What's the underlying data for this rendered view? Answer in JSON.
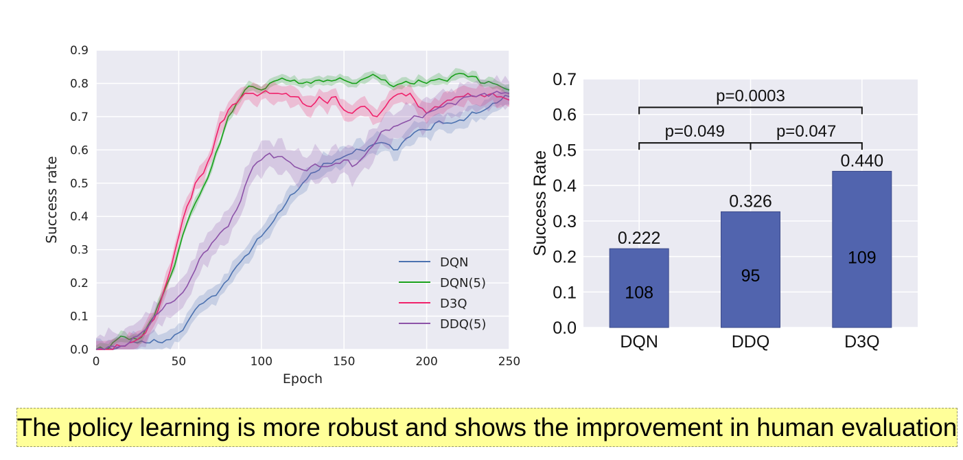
{
  "colors": {
    "plot_bg": "#eaeaf2",
    "grid": "#ffffff",
    "bar": "#5164ae",
    "caption_bg": "#ffff99"
  },
  "caption": "The policy learning is more robust and shows the improvement in human evaluation",
  "chart_data": [
    {
      "type": "line",
      "xlabel": "Epoch",
      "ylabel": "Success rate",
      "xlim": [
        0,
        250
      ],
      "ylim": [
        0,
        0.9
      ],
      "xticks": [
        "0",
        "50",
        "100",
        "150",
        "200",
        "250"
      ],
      "yticks": [
        "0.0",
        "0.1",
        "0.2",
        "0.3",
        "0.4",
        "0.5",
        "0.6",
        "0.7",
        "0.8",
        "0.9"
      ],
      "legend_position": "lower-right",
      "grid": true,
      "x": [
        0,
        5,
        10,
        15,
        20,
        25,
        30,
        35,
        40,
        45,
        50,
        55,
        60,
        65,
        70,
        75,
        80,
        85,
        90,
        95,
        100,
        105,
        110,
        115,
        120,
        125,
        130,
        135,
        140,
        145,
        150,
        155,
        160,
        165,
        170,
        175,
        180,
        185,
        190,
        195,
        200,
        205,
        210,
        215,
        220,
        225,
        230,
        235,
        240,
        245,
        250
      ],
      "series": [
        {
          "name": "DQN",
          "color": "#4c72b0",
          "values": [
            0.0,
            0.0,
            0.0,
            0.01,
            0.02,
            0.02,
            0.02,
            0.03,
            0.02,
            0.03,
            0.05,
            0.08,
            0.12,
            0.14,
            0.16,
            0.18,
            0.21,
            0.25,
            0.28,
            0.31,
            0.34,
            0.37,
            0.41,
            0.44,
            0.47,
            0.5,
            0.53,
            0.54,
            0.56,
            0.57,
            0.58,
            0.59,
            0.6,
            0.61,
            0.62,
            0.62,
            0.6,
            0.62,
            0.64,
            0.66,
            0.66,
            0.68,
            0.68,
            0.68,
            0.69,
            0.7,
            0.71,
            0.72,
            0.74,
            0.75,
            0.76
          ],
          "band": 0.03
        },
        {
          "name": "DQN(5)",
          "color": "#18a01a",
          "values": [
            0.0,
            0.0,
            0.02,
            0.04,
            0.03,
            0.03,
            0.06,
            0.1,
            0.16,
            0.22,
            0.3,
            0.38,
            0.44,
            0.49,
            0.55,
            0.62,
            0.7,
            0.74,
            0.78,
            0.79,
            0.78,
            0.8,
            0.81,
            0.81,
            0.81,
            0.8,
            0.8,
            0.81,
            0.81,
            0.81,
            0.81,
            0.8,
            0.81,
            0.82,
            0.82,
            0.81,
            0.79,
            0.8,
            0.8,
            0.81,
            0.8,
            0.81,
            0.81,
            0.82,
            0.83,
            0.82,
            0.82,
            0.8,
            0.8,
            0.79,
            0.78
          ],
          "band": 0.015
        },
        {
          "name": "D3Q",
          "color": "#f0206a",
          "values": [
            0.0,
            0.0,
            0.0,
            0.01,
            0.02,
            0.03,
            0.05,
            0.09,
            0.16,
            0.24,
            0.34,
            0.43,
            0.5,
            0.53,
            0.59,
            0.68,
            0.72,
            0.74,
            0.77,
            0.77,
            0.77,
            0.77,
            0.77,
            0.77,
            0.76,
            0.74,
            0.73,
            0.76,
            0.74,
            0.76,
            0.72,
            0.71,
            0.73,
            0.72,
            0.7,
            0.73,
            0.76,
            0.77,
            0.77,
            0.73,
            0.71,
            0.73,
            0.74,
            0.75,
            0.76,
            0.77,
            0.76,
            0.76,
            0.77,
            0.76,
            0.75
          ],
          "band": 0.03
        },
        {
          "name": "DDQ(5)",
          "color": "#8c52a8",
          "values": [
            0.0,
            0.0,
            0.01,
            0.01,
            0.02,
            0.04,
            0.06,
            0.1,
            0.12,
            0.14,
            0.16,
            0.19,
            0.24,
            0.29,
            0.32,
            0.35,
            0.37,
            0.42,
            0.49,
            0.55,
            0.57,
            0.59,
            0.58,
            0.57,
            0.55,
            0.54,
            0.55,
            0.55,
            0.55,
            0.56,
            0.57,
            0.55,
            0.57,
            0.6,
            0.63,
            0.66,
            0.67,
            0.68,
            0.69,
            0.7,
            0.71,
            0.72,
            0.73,
            0.74,
            0.75,
            0.76,
            0.76,
            0.77,
            0.77,
            0.77,
            0.77
          ],
          "band": 0.05
        }
      ]
    },
    {
      "type": "bar",
      "ylabel": "Success Rate",
      "categories": [
        "DQN",
        "DDQ",
        "D3Q"
      ],
      "values": [
        0.222,
        0.326,
        0.44
      ],
      "value_labels": [
        "0.222",
        "0.326",
        "0.440"
      ],
      "counts": [
        "108",
        "95",
        "109"
      ],
      "ylim": [
        0,
        0.7
      ],
      "yticks": [
        "0.0",
        "0.1",
        "0.2",
        "0.3",
        "0.4",
        "0.5",
        "0.6",
        "0.7"
      ],
      "grid": true,
      "significance": [
        {
          "from": 0,
          "to": 1,
          "y": 0.52,
          "label": "p=0.049"
        },
        {
          "from": 1,
          "to": 2,
          "y": 0.52,
          "label": "p=0.047"
        },
        {
          "from": 0,
          "to": 2,
          "y": 0.62,
          "label": "p=0.0003"
        }
      ]
    }
  ]
}
